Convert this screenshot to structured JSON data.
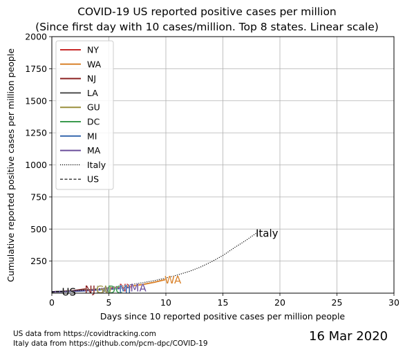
{
  "title_line1": "COVID-19 US reported positive cases per million",
  "title_line2": "(Since first day with 10 cases/million. Top 8 states. Linear scale)",
  "footer": {
    "us_source": "US data from https://covidtracking.com",
    "italy_source": "Italy data from https://github.com/pcm-dpc/COVID-19",
    "date": "16 Mar 2020"
  },
  "chart_data": {
    "type": "line",
    "xlabel": "Days since 10 reported positive cases per million people",
    "ylabel": "Cumulative reported positive cases per million people",
    "xlim": [
      0,
      30
    ],
    "ylim": [
      0,
      2000
    ],
    "xticks": [
      0,
      5,
      10,
      15,
      20,
      25,
      30
    ],
    "yticks": [
      250,
      500,
      750,
      1000,
      1250,
      1500,
      1750,
      2000
    ],
    "grid": true,
    "legend_position": "top-left",
    "series": [
      {
        "name": "NY",
        "color": "#c82a2a",
        "style": "solid",
        "x": [
          0,
          1,
          2,
          3,
          4,
          5,
          6
        ],
        "y": [
          10,
          13,
          17,
          22,
          28,
          36,
          46
        ]
      },
      {
        "name": "WA",
        "color": "#d9822b",
        "style": "solid",
        "x": [
          0,
          1,
          2,
          3,
          4,
          5,
          6,
          7,
          8,
          9,
          10
        ],
        "y": [
          10,
          13,
          17,
          21,
          26,
          33,
          42,
          55,
          68,
          85,
          107
        ]
      },
      {
        "name": "NJ",
        "color": "#8b2020",
        "style": "solid",
        "x": [
          0,
          1,
          2,
          3
        ],
        "y": [
          10,
          15,
          21,
          33
        ]
      },
      {
        "name": "LA",
        "color": "#4d4d4d",
        "style": "solid",
        "x": [
          0,
          1,
          2,
          3,
          4
        ],
        "y": [
          10,
          13,
          18,
          24,
          30
        ]
      },
      {
        "name": "GU",
        "color": "#9a8f3c",
        "style": "solid",
        "x": [
          0,
          1,
          2,
          3,
          4
        ],
        "y": [
          10,
          14,
          18,
          25,
          32
        ]
      },
      {
        "name": "DC",
        "color": "#3a9a4e",
        "style": "solid",
        "x": [
          0,
          1,
          2,
          3,
          4,
          5
        ],
        "y": [
          10,
          13,
          16,
          20,
          26,
          33
        ]
      },
      {
        "name": "MI",
        "color": "#3466ad",
        "style": "solid",
        "x": [
          0,
          1,
          2,
          3,
          4,
          5,
          6
        ],
        "y": [
          10,
          12,
          15,
          19,
          24,
          30,
          36
        ]
      },
      {
        "name": "MA",
        "color": "#6a4d9a",
        "style": "solid",
        "x": [
          0,
          1,
          2,
          3,
          4,
          5,
          6,
          7
        ],
        "y": [
          10,
          13,
          17,
          22,
          28,
          34,
          40,
          45
        ]
      },
      {
        "name": "Italy",
        "color": "#000000",
        "style": "dotted",
        "x": [
          0,
          1,
          2,
          3,
          4,
          5,
          6,
          7,
          8,
          9,
          10,
          11,
          12,
          13,
          14,
          15,
          16,
          17,
          18
        ],
        "y": [
          10,
          14,
          19,
          25,
          33,
          44,
          56,
          68,
          82,
          98,
          118,
          141,
          168,
          202,
          245,
          294,
          354,
          410,
          472
        ]
      },
      {
        "name": "US",
        "color": "#000000",
        "style": "dashed",
        "x": [
          0,
          1
        ],
        "y": [
          10,
          13
        ]
      }
    ],
    "annotations": [
      {
        "text": "NY",
        "x": 6,
        "y": 46,
        "color": "#c82a2a"
      },
      {
        "text": "WA",
        "x": 10,
        "y": 107,
        "color": "#d9822b"
      },
      {
        "text": "NJ",
        "x": 3,
        "y": 33,
        "color": "#8b2020"
      },
      {
        "text": "LA",
        "x": 4,
        "y": 30,
        "color": "#4d4d4d"
      },
      {
        "text": "GU",
        "x": 4,
        "y": 32,
        "color": "#9a8f3c"
      },
      {
        "text": "DC",
        "x": 5,
        "y": 33,
        "color": "#3a9a4e"
      },
      {
        "text": "MI",
        "x": 6,
        "y": 36,
        "color": "#3466ad"
      },
      {
        "text": "MA",
        "x": 7,
        "y": 45,
        "color": "#6a4d9a"
      },
      {
        "text": "Italy",
        "x": 18,
        "y": 472,
        "color": "#000000"
      },
      {
        "text": "US",
        "x": 1,
        "y": 13,
        "color": "#000000"
      }
    ]
  }
}
